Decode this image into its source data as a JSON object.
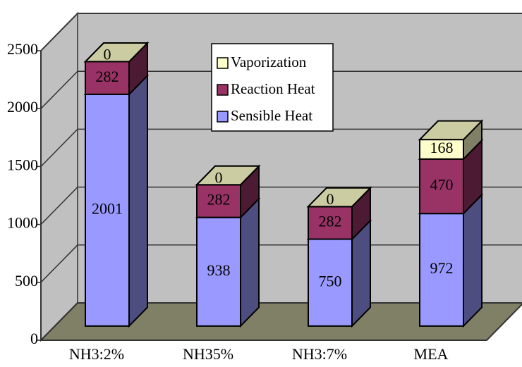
{
  "chart_data": {
    "type": "bar3d_stacked",
    "categories": [
      "NH3:2%",
      "NH35%",
      "NH3:7%",
      "MEA"
    ],
    "series": [
      {
        "name": "Sensible Heat",
        "color": "#9999ff",
        "values": [
          2001,
          938,
          750,
          972
        ]
      },
      {
        "name": "Reaction Heat",
        "color": "#993366",
        "values": [
          282,
          282,
          282,
          470
        ]
      },
      {
        "name": "Vaporization",
        "color": "#ffffcc",
        "values": [
          0,
          0,
          0,
          168
        ]
      }
    ],
    "ylim": [
      0,
      2500
    ],
    "yticks": [
      0,
      500,
      1000,
      1500,
      2000,
      2500
    ],
    "grid": true
  }
}
